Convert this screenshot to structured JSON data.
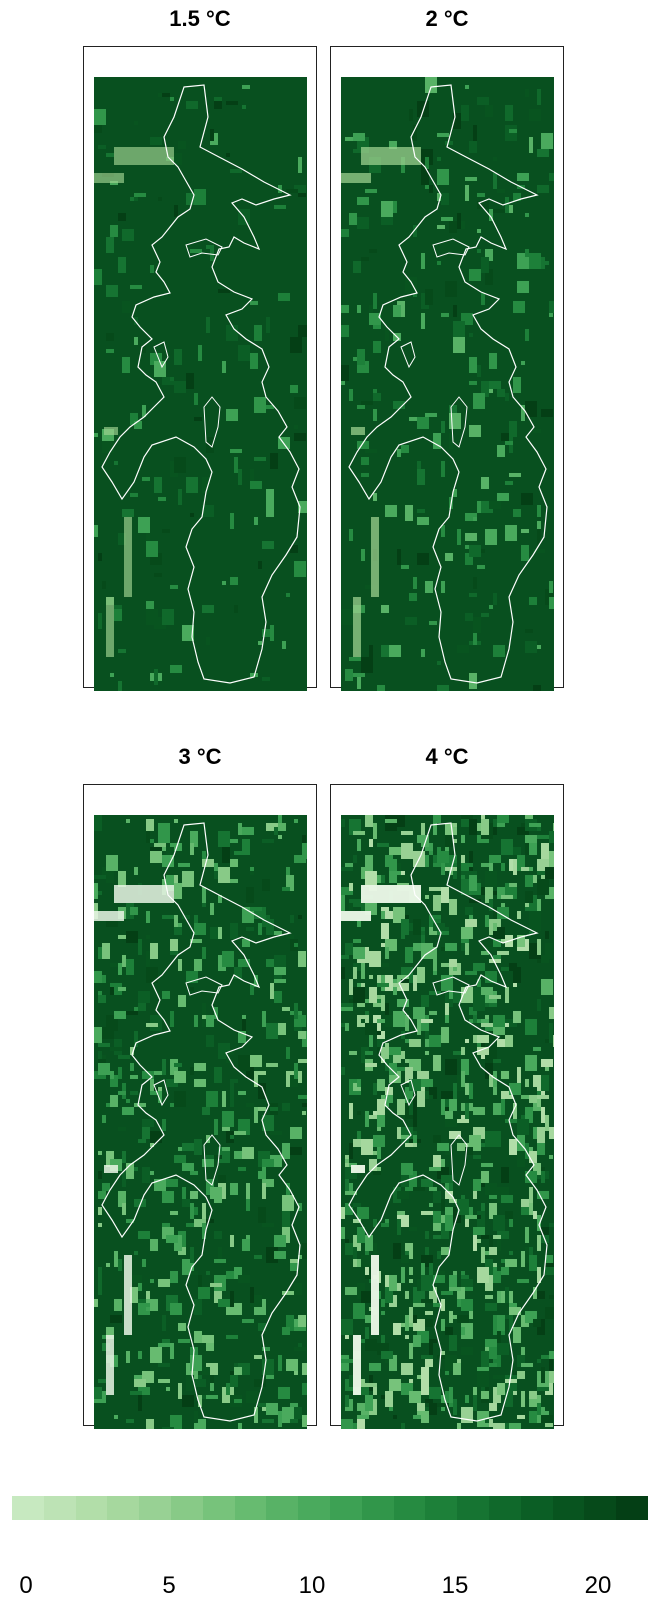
{
  "panels": [
    {
      "title": "1.5 °C",
      "warming": 1.5
    },
    {
      "title": "2 °C",
      "warming": 2
    },
    {
      "title": "3 °C",
      "warming": 3
    },
    {
      "title": "4 °C",
      "warming": 4
    }
  ],
  "colorbar": {
    "min": 0,
    "max": 20,
    "ticks": [
      "0",
      "5",
      "10",
      "15",
      "20"
    ],
    "colors": [
      "#c7e9c0",
      "#bde3b5",
      "#b2dea9",
      "#a6d89e",
      "#98d194",
      "#88ca87",
      "#77c37b",
      "#67bb70",
      "#58b266",
      "#4aaa5d",
      "#3da154",
      "#31964a",
      "#268b41",
      "#1d8039",
      "#167432",
      "#10692b",
      "#0b5e25",
      "#08541f",
      "#064a1a",
      "#043f15"
    ]
  },
  "map": {
    "background_color": "#08501f",
    "boundary_color": "#ffffff"
  }
}
